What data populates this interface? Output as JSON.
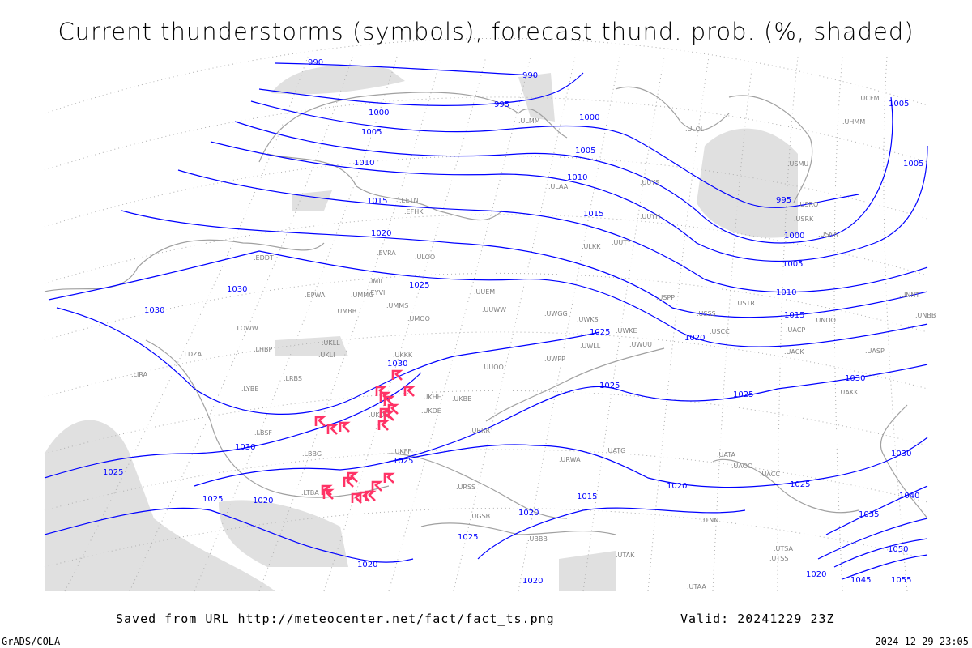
{
  "title": "Current thunderstorms (symbols), forecast thund. prob. (%, shaded)",
  "footer": {
    "source": "Saved from URL http://meteocenter.net/fact/fact_ts.png",
    "valid": "Valid: 20241229 23Z",
    "software": "GrADS/COLA",
    "timestamp": "2024-12-29-23:05"
  },
  "colors": {
    "isobar": "#0000ff",
    "coastline": "#a0a0a0",
    "shading": "#e0e0e0",
    "thunderstorm_symbol": "#ff3366"
  },
  "isobar_labels": [
    "990",
    "990",
    "995",
    "1000",
    "1000",
    "1005",
    "1005",
    "1005",
    "1010",
    "1010",
    "1015",
    "1015",
    "1020",
    "1025",
    "1025",
    "1030",
    "1030",
    "1030",
    "995",
    "1000",
    "1005",
    "1010",
    "1015",
    "1020",
    "1025",
    "1025",
    "1030",
    "1030",
    "1025",
    "1020",
    "1025",
    "1025",
    "1020",
    "1020",
    "1020",
    "1025",
    "1015",
    "1020",
    "1020",
    "1025",
    "1030",
    "1035",
    "1040",
    "1050",
    "1045",
    "1055",
    "1005"
  ],
  "stations": [
    "ULOO",
    "UUEM",
    "UUWW",
    "UWGG",
    "UWKS",
    "UWKE",
    "UWLL",
    "UWUU",
    "UKBB",
    "UKHH",
    "UKKK",
    "UKLL",
    "UKLI",
    "UKOO",
    "UKDE",
    "UKFF",
    "URSS",
    "URRR",
    "UGSB",
    "UBBB",
    "UTAK",
    "UTAA",
    "UUOO",
    "UWPP",
    "URWA",
    "UATG",
    "UATA",
    "UAOO",
    "UACC",
    "UAKK",
    "UACP",
    "UACK",
    "UASP",
    "UNBB",
    "UNOO",
    "USSS",
    "USCC",
    "USTR",
    "USNN",
    "USRK",
    "USRO",
    "USMU",
    "ULOL",
    "UUYS",
    "UUYH",
    "UUTY",
    "ULKK",
    "ULAA",
    "UMMG",
    "UMMS",
    "UMBB",
    "UMII",
    "UMOO",
    "EVRA",
    "EYVI",
    "EPWA",
    "LHBP",
    "LRBS",
    "LBSF",
    "LYBE",
    "LDZA",
    "LIRA",
    "EDDT",
    "LOWW",
    "LBBG",
    "LTBA",
    "EFHK",
    "EETN",
    "UCFM",
    "UHMM",
    "ULMM",
    "UTSA",
    "UTSS",
    "UTNN",
    "USPP",
    "UNNT"
  ],
  "legend_note": ""
}
